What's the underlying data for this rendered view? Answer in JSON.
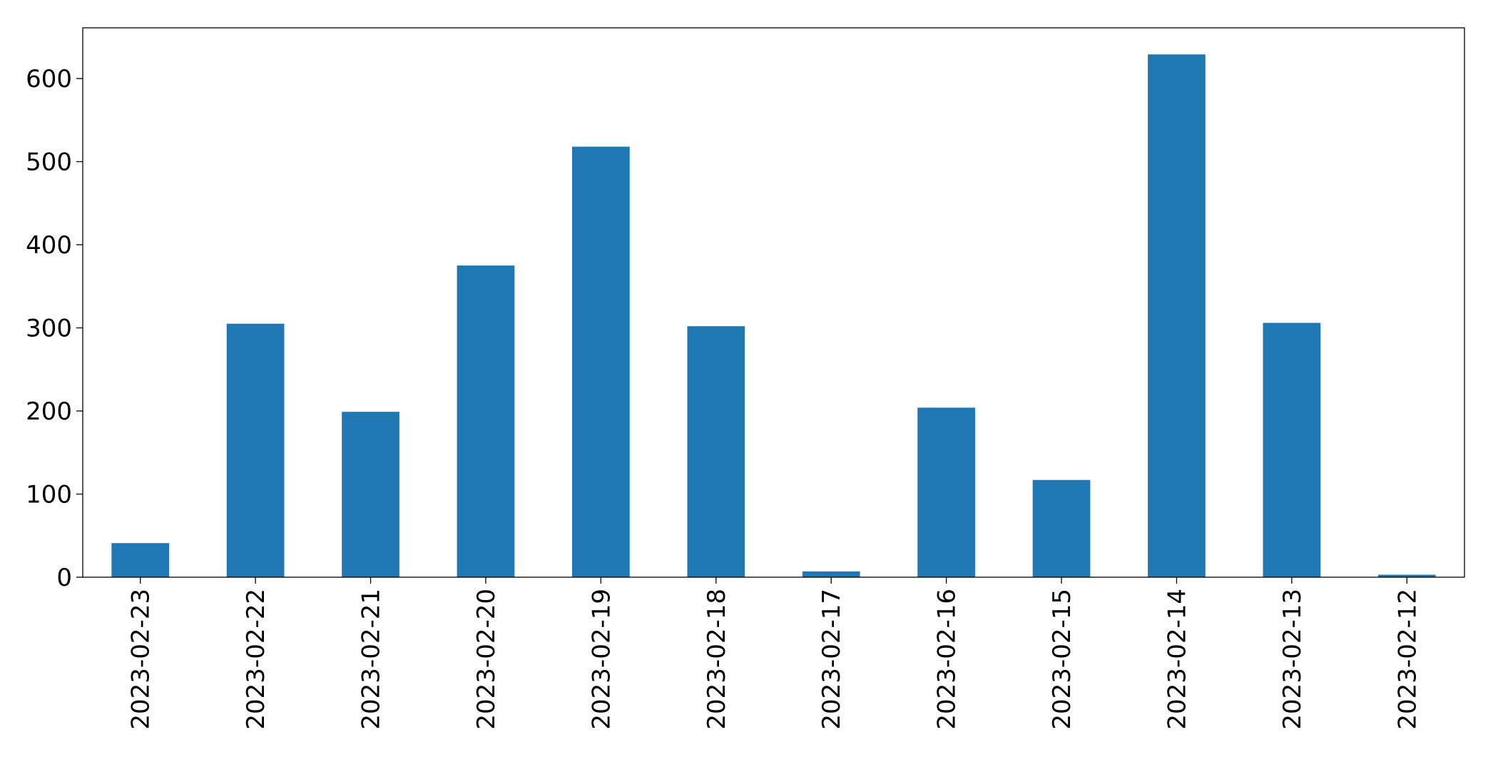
{
  "chart_data": {
    "type": "bar",
    "categories": [
      "2023-02-23",
      "2023-02-22",
      "2023-02-21",
      "2023-02-20",
      "2023-02-19",
      "2023-02-18",
      "2023-02-17",
      "2023-02-16",
      "2023-02-15",
      "2023-02-14",
      "2023-02-13",
      "2023-02-12"
    ],
    "values": [
      41,
      305,
      199,
      375,
      518,
      302,
      7,
      204,
      117,
      629,
      306,
      3
    ],
    "color": "#1f77b4",
    "ylim": [
      0,
      661
    ],
    "yticks": [
      0,
      100,
      200,
      300,
      400,
      500,
      600
    ],
    "grid": false
  }
}
